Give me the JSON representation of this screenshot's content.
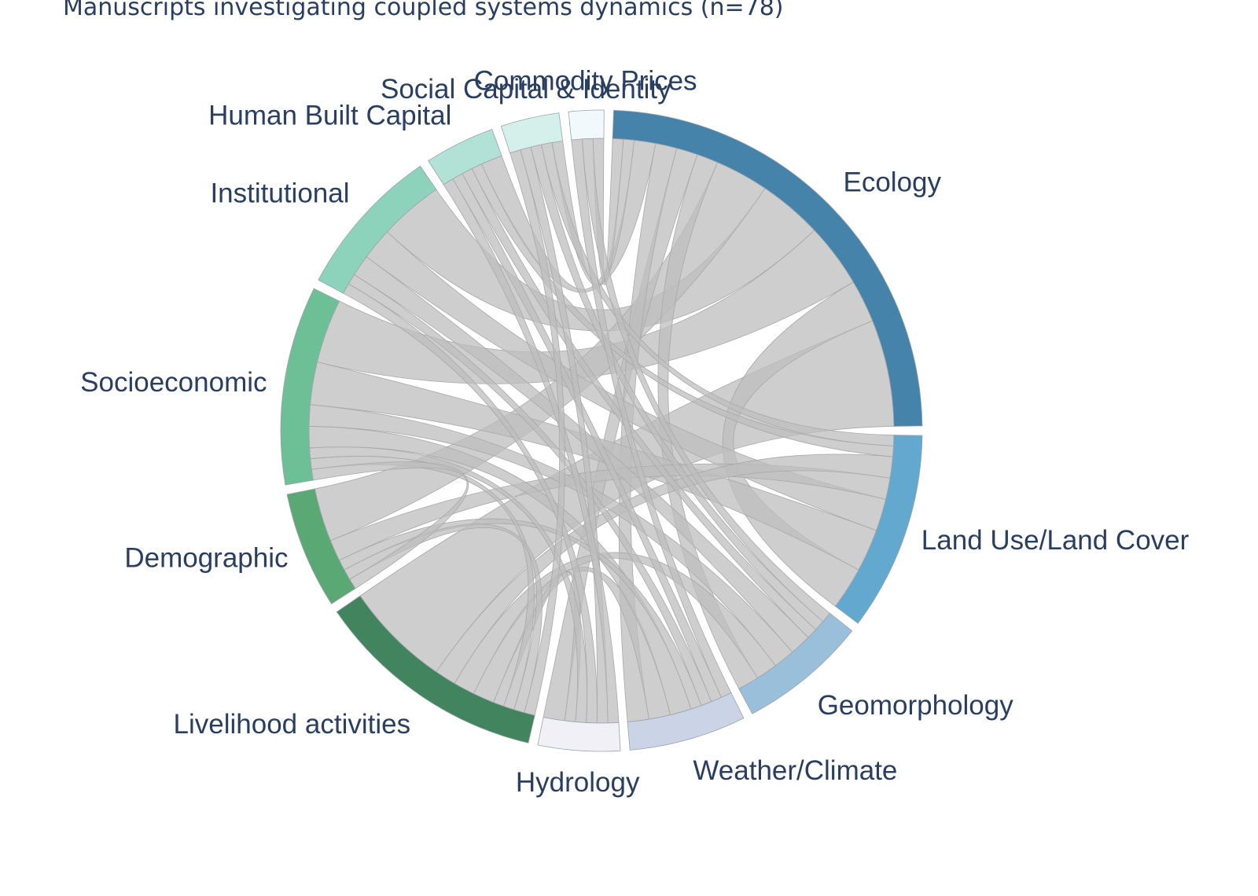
{
  "chart_data": {
    "type": "chord",
    "title": "Manuscripts investigating coupled systems dynamics (n=78)",
    "nodes": [
      {
        "name": "Ecology",
        "color": "#4683ab"
      },
      {
        "name": "Commodity Prices",
        "color": "#f1f9fc"
      },
      {
        "name": "Social Capital & Identity",
        "color": "#d5efea"
      },
      {
        "name": "Human Built Capital",
        "color": "#b2e2d5"
      },
      {
        "name": "Institutional",
        "color": "#8dd3bb"
      },
      {
        "name": "Socioeconomic",
        "color": "#6dc095"
      },
      {
        "name": "Demographic",
        "color": "#5aa874"
      },
      {
        "name": "Livelihood activities",
        "color": "#41845d"
      },
      {
        "name": "Hydrology",
        "color": "#f2f0f7"
      },
      {
        "name": "Weather/Climate",
        "color": "#cad4e6"
      },
      {
        "name": "Geomorphology",
        "color": "#9abfdb"
      },
      {
        "name": "Land Use/Land Cover",
        "color": "#62a8cf"
      }
    ],
    "links": [
      {
        "source": "Ecology",
        "target": "Livelihood activities",
        "value": 10
      },
      {
        "source": "Ecology",
        "target": "Land Use/Land Cover",
        "value": 4
      },
      {
        "source": "Ecology",
        "target": "Socioeconomic",
        "value": 6
      },
      {
        "source": "Ecology",
        "target": "Institutional",
        "value": 6
      },
      {
        "source": "Ecology",
        "target": "Demographic",
        "value": 5
      },
      {
        "source": "Ecology",
        "target": "Geomorphology",
        "value": 2
      },
      {
        "source": "Ecology",
        "target": "Hydrology",
        "value": 2
      },
      {
        "source": "Ecology",
        "target": "Weather/Climate",
        "value": 2
      },
      {
        "source": "Ecology",
        "target": "Human Built Capital",
        "value": 2
      },
      {
        "source": "Ecology",
        "target": "Social Capital & Identity",
        "value": 1
      },
      {
        "source": "Ecology",
        "target": "Commodity Prices",
        "value": 1
      },
      {
        "source": "Land Use/Land Cover",
        "target": "Socioeconomic",
        "value": 4
      },
      {
        "source": "Land Use/Land Cover",
        "target": "Institutional",
        "value": 3
      },
      {
        "source": "Land Use/Land Cover",
        "target": "Demographic",
        "value": 2
      },
      {
        "source": "Land Use/Land Cover",
        "target": "Livelihood activities",
        "value": 2
      },
      {
        "source": "Land Use/Land Cover",
        "target": "Human Built Capital",
        "value": 1
      },
      {
        "source": "Land Use/Land Cover",
        "target": "Social Capital & Identity",
        "value": 1
      },
      {
        "source": "Geomorphology",
        "target": "Livelihood activities",
        "value": 2
      },
      {
        "source": "Geomorphology",
        "target": "Socioeconomic",
        "value": 2
      },
      {
        "source": "Geomorphology",
        "target": "Institutional",
        "value": 2
      },
      {
        "source": "Geomorphology",
        "target": "Human Built Capital",
        "value": 1
      },
      {
        "source": "Geomorphology",
        "target": "Social Capital & Identity",
        "value": 1
      },
      {
        "source": "Geomorphology",
        "target": "Commodity Prices",
        "value": 1
      },
      {
        "source": "Weather/Climate",
        "target": "Livelihood activities",
        "value": 2
      },
      {
        "source": "Weather/Climate",
        "target": "Socioeconomic",
        "value": 2
      },
      {
        "source": "Weather/Climate",
        "target": "Demographic",
        "value": 1
      },
      {
        "source": "Weather/Climate",
        "target": "Institutional",
        "value": 1
      },
      {
        "source": "Weather/Climate",
        "target": "Human Built Capital",
        "value": 1
      },
      {
        "source": "Weather/Climate",
        "target": "Commodity Prices",
        "value": 1
      },
      {
        "source": "Hydrology",
        "target": "Livelihood activities",
        "value": 1
      },
      {
        "source": "Hydrology",
        "target": "Socioeconomic",
        "value": 1
      },
      {
        "source": "Hydrology",
        "target": "Institutional",
        "value": 1
      },
      {
        "source": "Hydrology",
        "target": "Social Capital & Identity",
        "value": 1
      },
      {
        "source": "Hydrology",
        "target": "Human Built Capital",
        "value": 1
      },
      {
        "source": "Livelihood activities",
        "target": "Socioeconomic",
        "value": 1
      },
      {
        "source": "Livelihood activities",
        "target": "Demographic",
        "value": 1
      },
      {
        "source": "Livelihood activities",
        "target": "Social Capital & Identity",
        "value": 1
      },
      {
        "source": "Demographic",
        "target": "Socioeconomic",
        "value": 1
      }
    ]
  }
}
